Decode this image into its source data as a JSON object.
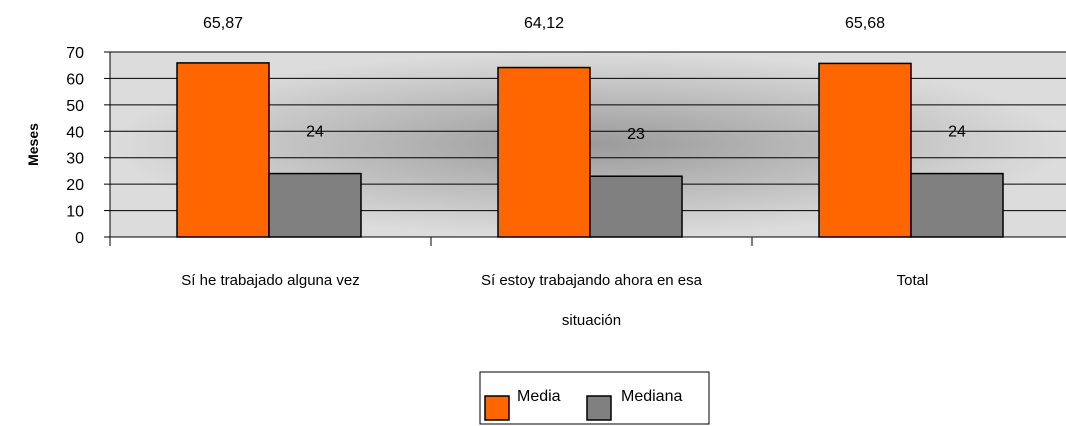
{
  "chart_data": {
    "type": "bar",
    "ylabel": "Meses",
    "ylim": [
      0,
      70
    ],
    "yticks": [
      0,
      10,
      20,
      30,
      40,
      50,
      60,
      70
    ],
    "grid": true,
    "legend_position": "bottom",
    "categories": [
      [
        "Sí he trabajado alguna vez"
      ],
      [
        "Sí estoy trabajando ahora en esa",
        "situación"
      ],
      [
        "Total"
      ]
    ],
    "series": [
      {
        "name": "Media",
        "color": "#FF6600",
        "values": [
          65.87,
          64.12,
          65.68
        ],
        "labels": [
          "65,87",
          "64,12",
          "65,68"
        ]
      },
      {
        "name": "Mediana",
        "color": "#808080",
        "values": [
          24,
          23,
          24
        ],
        "labels": [
          "24",
          "23",
          "24"
        ]
      }
    ]
  }
}
